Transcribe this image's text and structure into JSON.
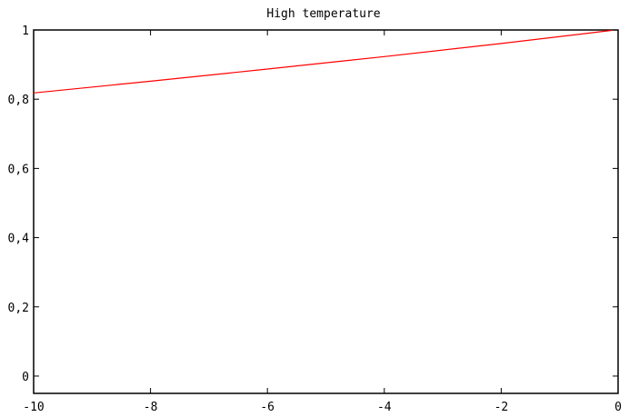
{
  "chart_data": {
    "type": "line",
    "title": "High temperature",
    "xlabel": "",
    "ylabel": "",
    "xlim": [
      -10,
      0
    ],
    "ylim": [
      -0.05,
      1.0
    ],
    "x_ticks": [
      -10,
      -8,
      -6,
      -4,
      -2,
      0
    ],
    "x_tick_labels": [
      "-10",
      "-8",
      "-6",
      "-4",
      "-2",
      "0"
    ],
    "y_ticks": [
      0,
      0.2,
      0.4,
      0.6,
      0.8,
      1
    ],
    "y_tick_labels": [
      "0",
      "0,2",
      "0,4",
      "0,6",
      "0,8",
      "1"
    ],
    "grid": false,
    "series": [
      {
        "color": "#ff0000",
        "x": [
          -10,
          -8,
          -6,
          -4,
          -2,
          -0.1
        ],
        "y": [
          0.818,
          0.852,
          0.887,
          0.923,
          0.961,
          0.999
        ]
      }
    ]
  }
}
